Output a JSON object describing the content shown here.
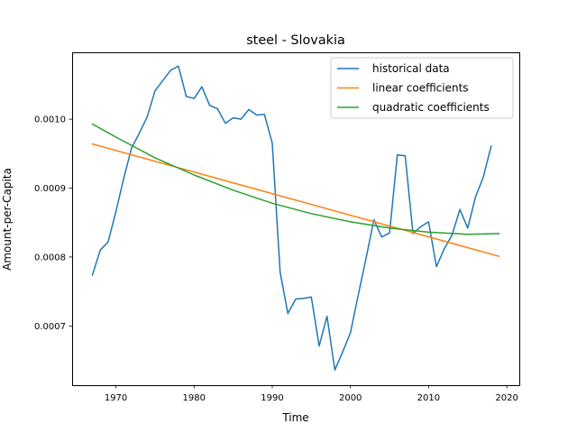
{
  "chart_data": {
    "type": "line",
    "title": "steel - Slovakia",
    "xlabel": "Time",
    "ylabel": "Amount-per-Capita",
    "xlim": [
      1964.4,
      2021.6
    ],
    "ylim": [
      0.000614,
      0.001097
    ],
    "xticks": [
      1970,
      1980,
      1990,
      2000,
      2010,
      2020
    ],
    "xtick_labels": [
      "1970",
      "1980",
      "1990",
      "2000",
      "2010",
      "2020"
    ],
    "yticks": [
      0.0007,
      0.0008,
      0.0009,
      0.001
    ],
    "ytick_labels": [
      "0.0007",
      "0.0008",
      "0.0009",
      "0.0010"
    ],
    "grid": false,
    "legend_position": "upper right",
    "series": [
      {
        "name": "historical data",
        "color": "#1f77b4",
        "x": [
          1967,
          1968,
          1969,
          1970,
          1971,
          1972,
          1973,
          1974,
          1975,
          1976,
          1977,
          1978,
          1979,
          1980,
          1981,
          1982,
          1983,
          1984,
          1985,
          1986,
          1987,
          1988,
          1989,
          1990,
          1991,
          1992,
          1993,
          1994,
          1995,
          1996,
          1997,
          1998,
          1999,
          2000,
          2001,
          2002,
          2003,
          2004,
          2005,
          2006,
          2007,
          2008,
          2009,
          2010,
          2011,
          2012,
          2013,
          2014,
          2015,
          2016,
          2017,
          2018
        ],
        "y": [
          0.000774,
          0.00081,
          0.000822,
          0.000866,
          0.000914,
          0.000958,
          0.00098,
          0.001003,
          0.001041,
          0.001056,
          0.001071,
          0.001077,
          0.001033,
          0.00103,
          0.001047,
          0.00102,
          0.001015,
          0.000994,
          0.001002,
          0.001,
          0.001014,
          0.001006,
          0.001007,
          0.000965,
          0.000778,
          0.000718,
          0.000739,
          0.00074,
          0.000742,
          0.000671,
          0.000714,
          0.000636,
          0.000662,
          0.00069,
          0.000745,
          0.000798,
          0.000854,
          0.000829,
          0.000835,
          0.000948,
          0.000947,
          0.000834,
          0.000844,
          0.000851,
          0.000786,
          0.000812,
          0.000832,
          0.000869,
          0.000842,
          0.000887,
          0.000916,
          0.000961
        ]
      },
      {
        "name": "linear coefficients",
        "color": "#ff7f0e",
        "x": [
          1967,
          2019
        ],
        "y": [
          0.000964,
          0.000801
        ]
      },
      {
        "name": "quadratic coefficients",
        "color": "#2ca02c",
        "x": [
          1967,
          1970,
          1975,
          1980,
          1985,
          1990,
          1995,
          2000,
          2005,
          2010,
          2015,
          2019
        ],
        "y": [
          0.000993,
          0.000974,
          0.000944,
          0.000919,
          0.000897,
          0.000878,
          0.000863,
          0.000851,
          0.000842,
          0.000836,
          0.000833,
          0.000834
        ]
      }
    ]
  }
}
